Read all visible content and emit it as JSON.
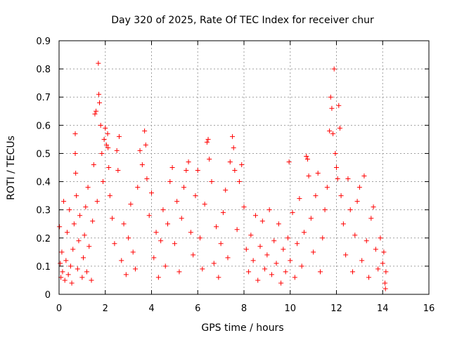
{
  "chart_data": {
    "type": "scatter",
    "title": "Day 320 of 2025, Rate Of TEC Index for receiver chur",
    "xlabel": "GPS time / hours",
    "ylabel": "ROTI / TECUs",
    "xlim": [
      0,
      16
    ],
    "ylim": [
      0,
      0.9
    ],
    "xticks": [
      "0",
      "2",
      "4",
      "6",
      "8",
      "10",
      "12",
      "14",
      "16"
    ],
    "yticks": [
      "0",
      "0.1",
      "0.2",
      "0.3",
      "0.4",
      "0.5",
      "0.6",
      "0.7",
      "0.8",
      "0.9"
    ],
    "grid": true,
    "legend": "none",
    "marker": "plus",
    "color": "#ff0000",
    "points": [
      [
        0.02,
        0.24
      ],
      [
        0.05,
        0.11
      ],
      [
        0.08,
        0.06
      ],
      [
        0.12,
        0.15
      ],
      [
        0.15,
        0.08
      ],
      [
        0.2,
        0.33
      ],
      [
        0.25,
        0.05
      ],
      [
        0.3,
        0.12
      ],
      [
        0.35,
        0.22
      ],
      [
        0.4,
        0.07
      ],
      [
        0.45,
        0.3
      ],
      [
        0.5,
        0.1
      ],
      [
        0.55,
        0.04
      ],
      [
        0.6,
        0.16
      ],
      [
        0.65,
        0.25
      ],
      [
        0.7,
        0.57
      ],
      [
        0.7,
        0.5
      ],
      [
        0.72,
        0.43
      ],
      [
        0.75,
        0.35
      ],
      [
        0.8,
        0.09
      ],
      [
        0.85,
        0.19
      ],
      [
        0.9,
        0.28
      ],
      [
        1.0,
        0.06
      ],
      [
        1.05,
        0.13
      ],
      [
        1.1,
        0.21
      ],
      [
        1.15,
        0.31
      ],
      [
        1.2,
        0.08
      ],
      [
        1.25,
        0.38
      ],
      [
        1.3,
        0.17
      ],
      [
        1.4,
        0.05
      ],
      [
        1.45,
        0.26
      ],
      [
        1.5,
        0.46
      ],
      [
        1.55,
        0.64
      ],
      [
        1.6,
        0.65
      ],
      [
        1.65,
        0.33
      ],
      [
        1.7,
        0.82
      ],
      [
        1.72,
        0.71
      ],
      [
        1.75,
        0.68
      ],
      [
        1.8,
        0.6
      ],
      [
        1.85,
        0.5
      ],
      [
        1.9,
        0.4
      ],
      [
        1.95,
        0.55
      ],
      [
        2.0,
        0.59
      ],
      [
        2.05,
        0.53
      ],
      [
        2.1,
        0.57
      ],
      [
        2.12,
        0.52
      ],
      [
        2.15,
        0.45
      ],
      [
        2.2,
        0.35
      ],
      [
        2.3,
        0.27
      ],
      [
        2.4,
        0.18
      ],
      [
        2.5,
        0.51
      ],
      [
        2.55,
        0.44
      ],
      [
        2.6,
        0.56
      ],
      [
        2.7,
        0.12
      ],
      [
        2.8,
        0.25
      ],
      [
        2.9,
        0.07
      ],
      [
        3.0,
        0.2
      ],
      [
        3.1,
        0.32
      ],
      [
        3.2,
        0.15
      ],
      [
        3.3,
        0.09
      ],
      [
        3.4,
        0.38
      ],
      [
        3.5,
        0.51
      ],
      [
        3.6,
        0.46
      ],
      [
        3.7,
        0.58
      ],
      [
        3.75,
        0.53
      ],
      [
        3.8,
        0.41
      ],
      [
        3.9,
        0.28
      ],
      [
        4.0,
        0.36
      ],
      [
        4.1,
        0.13
      ],
      [
        4.2,
        0.22
      ],
      [
        4.3,
        0.06
      ],
      [
        4.4,
        0.19
      ],
      [
        4.5,
        0.3
      ],
      [
        4.6,
        0.1
      ],
      [
        4.7,
        0.25
      ],
      [
        4.8,
        0.4
      ],
      [
        4.9,
        0.45
      ],
      [
        5.0,
        0.18
      ],
      [
        5.1,
        0.33
      ],
      [
        5.2,
        0.08
      ],
      [
        5.3,
        0.27
      ],
      [
        5.4,
        0.38
      ],
      [
        5.5,
        0.44
      ],
      [
        5.6,
        0.47
      ],
      [
        5.7,
        0.22
      ],
      [
        5.8,
        0.14
      ],
      [
        5.9,
        0.35
      ],
      [
        6.0,
        0.44
      ],
      [
        6.1,
        0.2
      ],
      [
        6.2,
        0.09
      ],
      [
        6.3,
        0.32
      ],
      [
        6.4,
        0.54
      ],
      [
        6.45,
        0.55
      ],
      [
        6.5,
        0.48
      ],
      [
        6.6,
        0.4
      ],
      [
        6.7,
        0.11
      ],
      [
        6.8,
        0.24
      ],
      [
        6.9,
        0.06
      ],
      [
        7.0,
        0.18
      ],
      [
        7.1,
        0.29
      ],
      [
        7.2,
        0.37
      ],
      [
        7.3,
        0.13
      ],
      [
        7.4,
        0.47
      ],
      [
        7.5,
        0.56
      ],
      [
        7.55,
        0.52
      ],
      [
        7.6,
        0.44
      ],
      [
        7.7,
        0.23
      ],
      [
        7.8,
        0.4
      ],
      [
        7.9,
        0.46
      ],
      [
        8.0,
        0.31
      ],
      [
        8.1,
        0.16
      ],
      [
        8.2,
        0.08
      ],
      [
        8.3,
        0.21
      ],
      [
        8.4,
        0.12
      ],
      [
        8.5,
        0.28
      ],
      [
        8.6,
        0.05
      ],
      [
        8.7,
        0.17
      ],
      [
        8.8,
        0.26
      ],
      [
        8.9,
        0.09
      ],
      [
        9.0,
        0.14
      ],
      [
        9.1,
        0.3
      ],
      [
        9.2,
        0.07
      ],
      [
        9.3,
        0.19
      ],
      [
        9.4,
        0.11
      ],
      [
        9.5,
        0.25
      ],
      [
        9.6,
        0.04
      ],
      [
        9.7,
        0.16
      ],
      [
        9.8,
        0.08
      ],
      [
        9.9,
        0.2
      ],
      [
        9.95,
        0.47
      ],
      [
        10.0,
        0.12
      ],
      [
        10.1,
        0.29
      ],
      [
        10.2,
        0.06
      ],
      [
        10.3,
        0.18
      ],
      [
        10.4,
        0.34
      ],
      [
        10.5,
        0.1
      ],
      [
        10.6,
        0.22
      ],
      [
        10.7,
        0.49
      ],
      [
        10.75,
        0.48
      ],
      [
        10.8,
        0.42
      ],
      [
        10.9,
        0.27
      ],
      [
        11.0,
        0.15
      ],
      [
        11.1,
        0.35
      ],
      [
        11.2,
        0.43
      ],
      [
        11.3,
        0.08
      ],
      [
        11.4,
        0.2
      ],
      [
        11.5,
        0.3
      ],
      [
        11.6,
        0.38
      ],
      [
        11.7,
        0.58
      ],
      [
        11.75,
        0.7
      ],
      [
        11.8,
        0.66
      ],
      [
        11.85,
        0.57
      ],
      [
        11.9,
        0.8
      ],
      [
        11.95,
        0.5
      ],
      [
        12.0,
        0.45
      ],
      [
        12.05,
        0.41
      ],
      [
        12.1,
        0.67
      ],
      [
        12.15,
        0.59
      ],
      [
        12.2,
        0.35
      ],
      [
        12.3,
        0.25
      ],
      [
        12.4,
        0.14
      ],
      [
        12.5,
        0.41
      ],
      [
        12.6,
        0.3
      ],
      [
        12.7,
        0.08
      ],
      [
        12.8,
        0.21
      ],
      [
        12.9,
        0.33
      ],
      [
        13.0,
        0.38
      ],
      [
        13.1,
        0.12
      ],
      [
        13.2,
        0.42
      ],
      [
        13.3,
        0.19
      ],
      [
        13.4,
        0.06
      ],
      [
        13.5,
        0.27
      ],
      [
        13.6,
        0.31
      ],
      [
        13.7,
        0.16
      ],
      [
        13.8,
        0.09
      ],
      [
        13.9,
        0.2
      ],
      [
        14.0,
        0.11
      ],
      [
        14.05,
        0.15
      ],
      [
        14.1,
        0.04
      ],
      [
        14.12,
        0.02
      ],
      [
        14.14,
        0.08
      ]
    ]
  }
}
